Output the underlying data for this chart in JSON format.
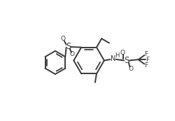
{
  "bg_color": "#ffffff",
  "line_color": "#3a3a3a",
  "lw": 1.4,
  "fs": 7.0,
  "figsize": [
    2.5,
    1.73
  ],
  "dpi": 100,
  "xlim": [
    -1.0,
    11.0
  ],
  "ylim": [
    -0.5,
    7.5
  ]
}
